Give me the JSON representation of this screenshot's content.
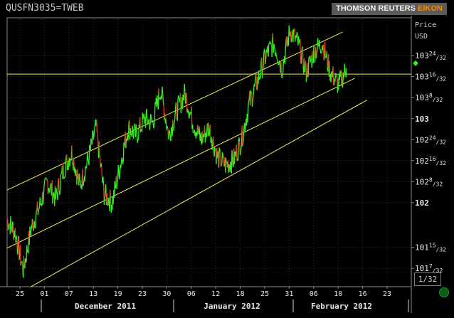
{
  "header": {
    "ric": "QUSFN3035=TWEB",
    "brand_main": "THOMSON REUTERS ",
    "brand_accent": "EIKON"
  },
  "colors": {
    "background": "#000000",
    "price_series": "#33ee22",
    "down_ticks": "#ee3322",
    "channel_lines": "#f0f060",
    "grid": "#5a5a5a",
    "brand_accent": "#ff8a00"
  },
  "price_box": "1/32",
  "chart_data": {
    "type": "line",
    "yaxis_title": [
      "Price",
      "USD"
    ],
    "x_day_ticks": [
      "25",
      "01",
      "07",
      "13",
      "19",
      "23",
      "30",
      "06",
      "12",
      "18",
      "25",
      "31",
      "06",
      "10",
      "16",
      "23"
    ],
    "x_month_labels": [
      "December 2011",
      "January 2012",
      "February 2012"
    ],
    "y_ticks": [
      {
        "value": 101.21875,
        "whole": "101",
        "num": "7",
        "den": "/32"
      },
      {
        "value": 101.46875,
        "whole": "101",
        "num": "15",
        "den": "/32"
      },
      {
        "value": 102.0,
        "whole": "102",
        "num": "",
        "den": ""
      },
      {
        "value": 102.25,
        "whole": "102",
        "num": "8",
        "den": "/32"
      },
      {
        "value": 102.5,
        "whole": "102",
        "num": "16",
        "den": "/32"
      },
      {
        "value": 102.75,
        "whole": "102",
        "num": "24",
        "den": "/32"
      },
      {
        "value": 103.0,
        "whole": "103",
        "num": "",
        "den": ""
      },
      {
        "value": 103.25,
        "whole": "103",
        "num": "8",
        "den": "/32"
      },
      {
        "value": 103.5,
        "whole": "103",
        "num": "16",
        "den": "/32"
      },
      {
        "value": 103.75,
        "whole": "103",
        "num": "24",
        "den": "/32"
      }
    ],
    "ylim": [
      101.0,
      104.2
    ],
    "xlim": [
      0,
      100
    ],
    "grid": true,
    "series": [
      {
        "x": [
          0,
          2,
          4,
          6,
          8,
          10,
          12,
          14,
          16,
          18,
          20,
          22,
          24,
          26,
          28,
          30,
          32,
          34,
          36,
          38,
          40,
          42,
          44,
          46,
          48,
          50,
          52,
          54,
          56,
          58,
          60,
          62,
          64,
          66,
          68,
          70,
          72,
          74,
          76,
          78,
          80,
          82,
          84
        ],
        "values": [
          101.8,
          101.65,
          101.2,
          101.7,
          101.95,
          102.25,
          102.05,
          102.4,
          102.6,
          102.2,
          102.5,
          102.9,
          102.1,
          102.0,
          102.45,
          102.9,
          102.8,
          103.0,
          102.95,
          103.35,
          102.8,
          103.1,
          103.3,
          102.95,
          102.75,
          102.9,
          102.55,
          102.45,
          102.5,
          102.75,
          103.2,
          103.45,
          103.75,
          103.9,
          103.6,
          104.05,
          103.9,
          103.55,
          103.8,
          103.9,
          103.55,
          103.4,
          103.6
        ]
      }
    ],
    "channel": {
      "top": {
        "x": [
          0,
          83
        ],
        "values": [
          102.15,
          104.03
        ]
      },
      "mid": {
        "x": [
          0,
          86
        ],
        "values": [
          101.46,
          103.48
        ]
      },
      "bottom": {
        "x": [
          4,
          89
        ],
        "values": [
          100.95,
          103.22
        ]
      },
      "horizontal_level": 103.53
    }
  }
}
